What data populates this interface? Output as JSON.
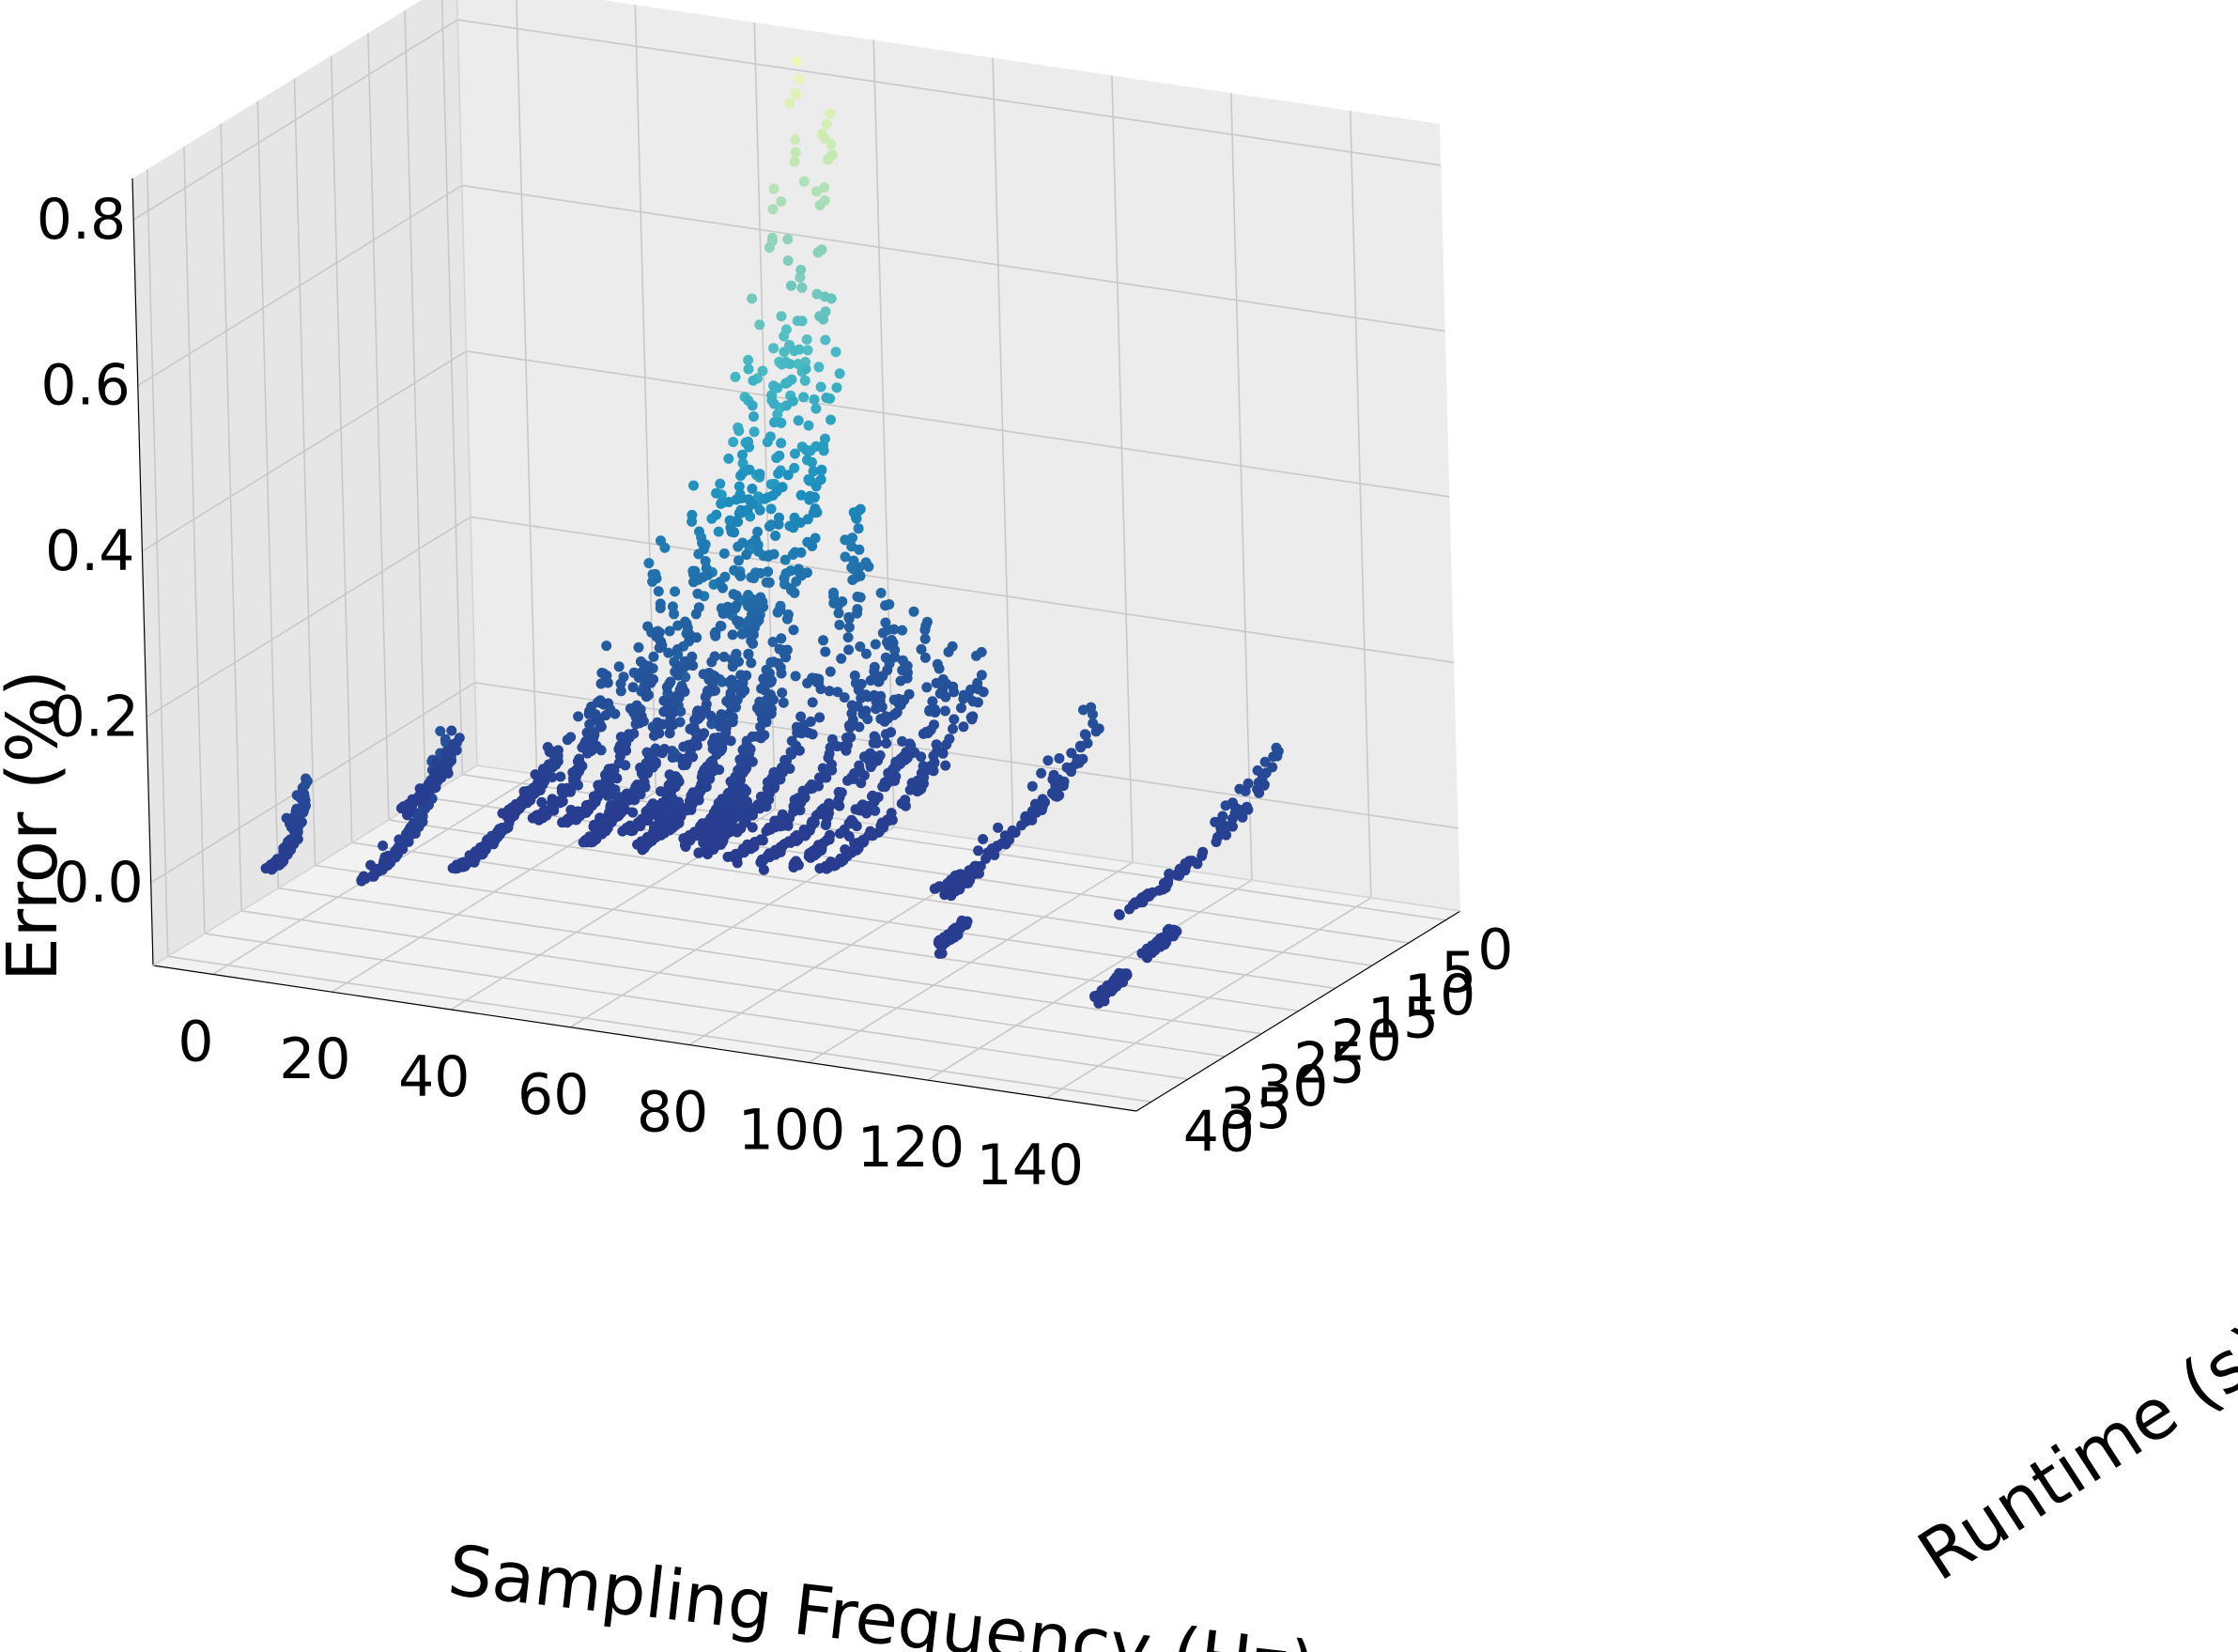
{
  "chart_data": {
    "type": "scatter",
    "projection": "3d",
    "colormap": "YlGnBu",
    "colors": {
      "low": "#283a8f",
      "mid": "#1d91c0",
      "high": "#f3fbb8",
      "pane": "#f0f0f0",
      "grid": "#c8c8c8"
    },
    "x_axis": {
      "label": "Sampling Frequency (Hz)",
      "ticks": [
        0,
        20,
        40,
        60,
        80,
        100,
        120,
        140
      ],
      "lim": [
        -10,
        155
      ]
    },
    "y_axis": {
      "label": "Runtime (s)",
      "ticks": [
        0,
        5,
        10,
        15,
        20,
        25,
        30,
        35,
        40
      ],
      "lim": [
        -2,
        42
      ]
    },
    "z_axis": {
      "label": "Error (%)",
      "ticks": [
        0.0,
        0.2,
        0.4,
        0.6,
        0.8
      ],
      "tick_labels": [
        "0.0",
        "0.2",
        "0.4",
        "0.6",
        "0.8"
      ],
      "lim": [
        -0.1,
        0.85
      ]
    },
    "grid": true,
    "clusters": [
      {
        "frequency": 5,
        "runtime_range": [
          33,
          38
        ],
        "error_max": 0.1
      },
      {
        "frequency": 10,
        "runtime_range": [
          16,
          24
        ],
        "error_max": 0.07
      },
      {
        "frequency": 20,
        "runtime_range": [
          26,
          38
        ],
        "error_max": 0.13
      },
      {
        "frequency": 25,
        "runtime_range": [
          15,
          22
        ],
        "error_max": 0.06
      },
      {
        "frequency": 30,
        "runtime_range": [
          12,
          22
        ],
        "error_max": 0.17
      },
      {
        "frequency": 30,
        "runtime_range": [
          26,
          33
        ],
        "error_max": 0.03
      },
      {
        "frequency": 35,
        "runtime_range": [
          8,
          22
        ],
        "error_max": 0.28
      },
      {
        "frequency": 40,
        "runtime_range": [
          6,
          22
        ],
        "error_max": 0.36
      },
      {
        "frequency": 42,
        "runtime_range": [
          20,
          25
        ],
        "error_max": 0.05
      },
      {
        "frequency": 45,
        "runtime_range": [
          3,
          22
        ],
        "error_max": 0.52
      },
      {
        "frequency": 50,
        "runtime_range": [
          0.2,
          22
        ],
        "error_max": 0.85
      },
      {
        "frequency": 50,
        "runtime_range": [
          19,
          24
        ],
        "error_max": 0.05
      },
      {
        "frequency": 55,
        "runtime_range": [
          0.2,
          22
        ],
        "error_max": 0.8
      },
      {
        "frequency": 58,
        "runtime_range": [
          16,
          22
        ],
        "error_max": 0.05
      },
      {
        "frequency": 60,
        "runtime_range": [
          1,
          24
        ],
        "error_max": 0.36
      },
      {
        "frequency": 65,
        "runtime_range": [
          1,
          24
        ],
        "error_max": 0.22
      },
      {
        "frequency": 70,
        "runtime_range": [
          1,
          24
        ],
        "error_max": 0.2
      },
      {
        "frequency": 75,
        "runtime_range": [
          1,
          24
        ],
        "error_max": 0.18
      },
      {
        "frequency": 80,
        "runtime_range": [
          1,
          24
        ],
        "error_max": 0.16
      },
      {
        "frequency": 100,
        "runtime_range": [
          2,
          24
        ],
        "error_max": 0.12
      },
      {
        "frequency": 102,
        "runtime_range": [
          20,
          24
        ],
        "error_max": 0.02
      },
      {
        "frequency": 112,
        "runtime_range": [
          30,
          34
        ],
        "error_max": 0.02
      },
      {
        "frequency": 130,
        "runtime_range": [
          2,
          24
        ],
        "error_max": 0.1
      },
      {
        "frequency": 142,
        "runtime_range": [
          26,
          30
        ],
        "error_max": 0.02
      },
      {
        "frequency": 145,
        "runtime_range": [
          35,
          39
        ],
        "error_max": 0.02
      }
    ]
  }
}
